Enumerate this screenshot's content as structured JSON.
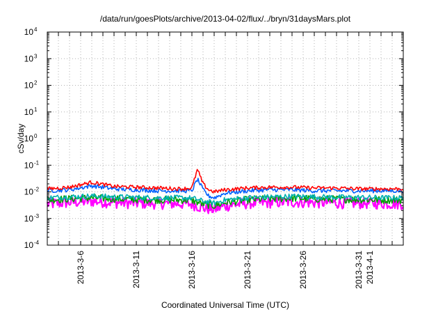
{
  "chart_data": {
    "type": "line",
    "title": "/data/run/goesPlots/archive/2013-04-02/flux/../bryn/31daysMars.plot",
    "xlabel": "Coordinated Universal Time (UTC)",
    "ylabel": "cSv/day",
    "yscale": "log",
    "ylim": [
      0.0001,
      10000
    ],
    "xlim": [
      "2013-03-03",
      "2013-04-04"
    ],
    "grid": true,
    "legend": "none",
    "y_tick_labels": [
      {
        "base": "10",
        "exp": "-4"
      },
      {
        "base": "10",
        "exp": "-3"
      },
      {
        "base": "10",
        "exp": "-2"
      },
      {
        "base": "10",
        "exp": "-1"
      },
      {
        "base": "10",
        "exp": "0"
      },
      {
        "base": "10",
        "exp": "1"
      },
      {
        "base": "10",
        "exp": "2"
      },
      {
        "base": "10",
        "exp": "3"
      },
      {
        "base": "10",
        "exp": "4"
      }
    ],
    "x_tick_labels": [
      {
        "date": "2013-03-06",
        "label": "2013-3-6"
      },
      {
        "date": "2013-03-11",
        "label": "2013-3-11"
      },
      {
        "date": "2013-03-16",
        "label": "2013-3-16"
      },
      {
        "date": "2013-03-21",
        "label": "2013-3-21"
      },
      {
        "date": "2013-03-26",
        "label": "2013-3-26"
      },
      {
        "date": "2013-03-31",
        "label": "2013-3-31"
      },
      {
        "date": "2013-04-01",
        "label": "2013-4-1"
      }
    ],
    "x_grid_dates": [
      "2013-03-04",
      "2013-03-05",
      "2013-03-06",
      "2013-03-07",
      "2013-03-08",
      "2013-03-09",
      "2013-03-10",
      "2013-03-11",
      "2013-03-12",
      "2013-03-13",
      "2013-03-14",
      "2013-03-15",
      "2013-03-16",
      "2013-03-17",
      "2013-03-18",
      "2013-03-19",
      "2013-03-20",
      "2013-03-21",
      "2013-03-22",
      "2013-03-23",
      "2013-03-24",
      "2013-03-25",
      "2013-03-26",
      "2013-03-27",
      "2013-03-28",
      "2013-03-29",
      "2013-03-30",
      "2013-03-31",
      "2013-04-01",
      "2013-04-02",
      "2013-04-03"
    ],
    "series": [
      {
        "color": "#ff00ff",
        "x": [
          "2013-03-03",
          "2013-03-05",
          "2013-03-07",
          "2013-03-09",
          "2013-03-11",
          "2013-03-13",
          "2013-03-15",
          "2013-03-16",
          "2013-03-17",
          "2013-03-18",
          "2013-03-19",
          "2013-03-21",
          "2013-03-23",
          "2013-03-25",
          "2013-03-27",
          "2013-03-29",
          "2013-03-31",
          "2013-04-02",
          "2013-04-04"
        ],
        "y": [
          0.0035,
          0.004,
          0.0045,
          0.004,
          0.0038,
          0.0037,
          0.0036,
          0.0035,
          0.0025,
          0.0022,
          0.003,
          0.0038,
          0.004,
          0.0042,
          0.004,
          0.0039,
          0.0038,
          0.0037,
          0.0036
        ]
      },
      {
        "color": "#00a000",
        "x": [
          "2013-03-03",
          "2013-03-05",
          "2013-03-07",
          "2013-03-09",
          "2013-03-11",
          "2013-03-13",
          "2013-03-15",
          "2013-03-16",
          "2013-03-17",
          "2013-03-18",
          "2013-03-19",
          "2013-03-21",
          "2013-03-23",
          "2013-03-25",
          "2013-03-27",
          "2013-03-29",
          "2013-03-31",
          "2013-04-02",
          "2013-04-04"
        ],
        "y": [
          0.005,
          0.0055,
          0.006,
          0.0055,
          0.0052,
          0.005,
          0.005,
          0.0048,
          0.0035,
          0.003,
          0.004,
          0.005,
          0.0055,
          0.0058,
          0.0055,
          0.0053,
          0.0052,
          0.005,
          0.005
        ]
      },
      {
        "color": "#00b0b0",
        "x": [
          "2013-03-03",
          "2013-03-05",
          "2013-03-07",
          "2013-03-09",
          "2013-03-11",
          "2013-03-13",
          "2013-03-15",
          "2013-03-16",
          "2013-03-17",
          "2013-03-18",
          "2013-03-19",
          "2013-03-21",
          "2013-03-23",
          "2013-03-25",
          "2013-03-27",
          "2013-03-29",
          "2013-03-31",
          "2013-04-02",
          "2013-04-04"
        ],
        "y": [
          0.006,
          0.0065,
          0.007,
          0.0065,
          0.0062,
          0.006,
          0.006,
          0.0058,
          0.0045,
          0.0038,
          0.005,
          0.006,
          0.0065,
          0.0068,
          0.0065,
          0.0063,
          0.0062,
          0.006,
          0.006
        ]
      },
      {
        "color": "#0060ff",
        "x": [
          "2013-03-03",
          "2013-03-05",
          "2013-03-07",
          "2013-03-09",
          "2013-03-11",
          "2013-03-13",
          "2013-03-15",
          "2013-03-16",
          "2013-03-16.5",
          "2013-03-17",
          "2013-03-17.5",
          "2013-03-18",
          "2013-03-19",
          "2013-03-21",
          "2013-03-23",
          "2013-03-25",
          "2013-03-27",
          "2013-03-29",
          "2013-03-31",
          "2013-04-02",
          "2013-04-04"
        ],
        "y": [
          0.011,
          0.012,
          0.017,
          0.013,
          0.012,
          0.011,
          0.011,
          0.011,
          0.03,
          0.012,
          0.007,
          0.006,
          0.009,
          0.011,
          0.012,
          0.012,
          0.011,
          0.011,
          0.011,
          0.011,
          0.011
        ]
      },
      {
        "color": "#ff0000",
        "x": [
          "2013-03-03",
          "2013-03-05",
          "2013-03-07",
          "2013-03-09",
          "2013-03-11",
          "2013-03-13",
          "2013-03-15",
          "2013-03-16",
          "2013-03-16.5",
          "2013-03-17",
          "2013-03-17.5",
          "2013-03-18",
          "2013-03-19",
          "2013-03-21",
          "2013-03-23",
          "2013-03-25",
          "2013-03-27",
          "2013-03-29",
          "2013-03-31",
          "2013-04-02",
          "2013-04-04"
        ],
        "y": [
          0.013,
          0.015,
          0.023,
          0.016,
          0.015,
          0.014,
          0.013,
          0.014,
          0.07,
          0.02,
          0.012,
          0.01,
          0.012,
          0.014,
          0.015,
          0.015,
          0.014,
          0.014,
          0.013,
          0.013,
          0.013
        ]
      }
    ]
  }
}
